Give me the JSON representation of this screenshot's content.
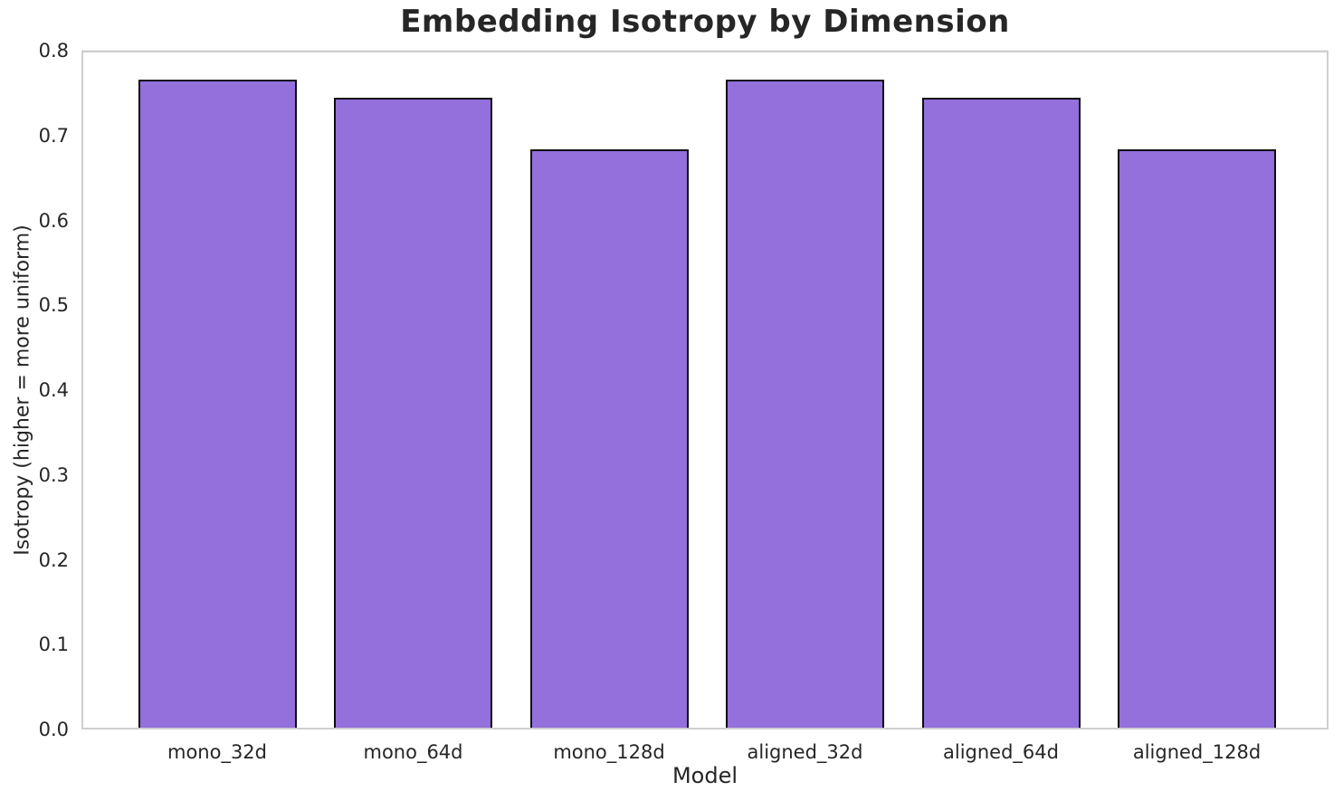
{
  "chart_data": {
    "type": "bar",
    "title": "Embedding Isotropy by Dimension",
    "xlabel": "Model",
    "ylabel": "Isotropy (higher = more uniform)",
    "categories": [
      "mono_32d",
      "mono_64d",
      "mono_128d",
      "aligned_32d",
      "aligned_64d",
      "aligned_128d"
    ],
    "values": [
      0.766,
      0.745,
      0.684,
      0.766,
      0.745,
      0.684
    ],
    "ylim": [
      0.0,
      0.8
    ],
    "ytick_values": [
      0.0,
      0.1,
      0.2,
      0.3,
      0.4,
      0.5,
      0.6,
      0.7,
      0.8
    ],
    "ytick_labels": [
      "0.0",
      "0.1",
      "0.2",
      "0.3",
      "0.4",
      "0.5",
      "0.6",
      "0.7",
      "0.8"
    ],
    "grid": "both",
    "legend": "none",
    "bar_width_fraction": 0.8,
    "colors": {
      "bar_fill": "#9370DB",
      "bar_edge": "#0d0d0d",
      "grid_line": "#e8e8e8",
      "spine": "#cfcfcf",
      "text": "#262626",
      "background": "#ffffff"
    }
  }
}
